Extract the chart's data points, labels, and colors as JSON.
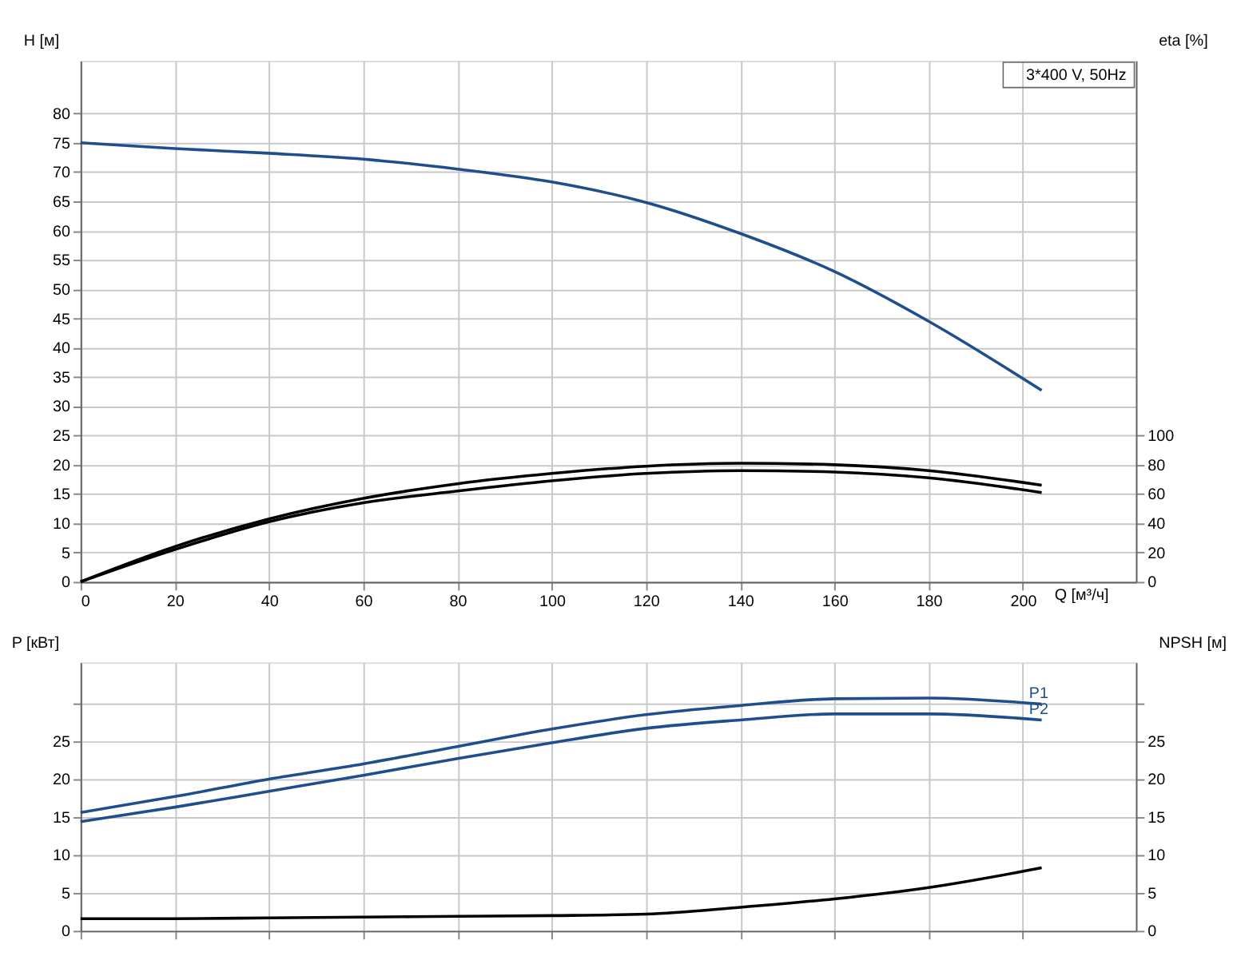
{
  "chart_data": [
    {
      "type": "line",
      "xlabel": "Q [м³/ч]",
      "ylabel": "H [м]",
      "y2label": "eta [%]",
      "annotations": [
        "3*400 V, 50Hz"
      ],
      "x": [
        0,
        20,
        40,
        60,
        80,
        100,
        120,
        140,
        160,
        180,
        204
      ],
      "series": [
        {
          "color": "#1f4e8c",
          "values": [
            75,
            74,
            73.2,
            72.2,
            70.5,
            68.3,
            64.8,
            59.5,
            53,
            44.5,
            32.7
          ]
        },
        {
          "color": "#000000",
          "axis": "y2",
          "values": [
            0,
            24,
            43,
            57,
            67,
            74,
            79,
            81,
            80,
            76,
            66
          ]
        },
        {
          "color": "#000000",
          "axis": "y2",
          "values": [
            0,
            22,
            41,
            54,
            62,
            69,
            74,
            76,
            75,
            71,
            61
          ]
        }
      ],
      "xlim": [
        0,
        224
      ],
      "xticks": [
        0,
        20,
        40,
        60,
        80,
        100,
        120,
        140,
        160,
        180,
        200
      ],
      "ylim": [
        0,
        89
      ],
      "yticks": [
        0,
        5,
        10,
        15,
        20,
        25,
        30,
        35,
        40,
        45,
        50,
        55,
        60,
        65,
        70,
        75,
        80
      ],
      "y2lim": [
        0,
        356
      ],
      "y2ticks": [
        0,
        20,
        40,
        60,
        80,
        100
      ],
      "grid": true,
      "legend": false
    },
    {
      "type": "line",
      "ylabel": "P [кВт]",
      "y2label": "NPSH [м]",
      "x": [
        0,
        20,
        40,
        60,
        80,
        100,
        120,
        140,
        160,
        180,
        204
      ],
      "series": [
        {
          "name": "P1",
          "color": "#1f4e8c",
          "values": [
            15.6,
            17.7,
            20,
            22,
            24.3,
            26.6,
            28.5,
            29.7,
            30.6,
            30.7,
            29.9
          ]
        },
        {
          "name": "P2",
          "color": "#1f4e8c",
          "values": [
            14.4,
            16.3,
            18.4,
            20.5,
            22.7,
            24.8,
            26.7,
            27.8,
            28.6,
            28.6,
            27.8
          ]
        },
        {
          "color": "#000000",
          "axis": "y2",
          "values": [
            1.6,
            1.6,
            1.7,
            1.8,
            1.9,
            2,
            2.2,
            3.1,
            4.2,
            5.7,
            8.3
          ]
        }
      ],
      "xlim": [
        0,
        224
      ],
      "xticks": [
        0,
        20,
        40,
        60,
        80,
        100,
        120,
        140,
        160,
        180,
        200
      ],
      "ylim": [
        0,
        35.4
      ],
      "yticks": [
        0,
        5,
        10,
        15,
        20,
        25,
        {
          "value": 30,
          "label": null
        }
      ],
      "y2lim": [
        0,
        35.4
      ],
      "y2ticks": [
        0,
        5,
        10,
        15,
        20,
        25,
        {
          "value": 30,
          "label": null
        }
      ],
      "grid": true,
      "legend": false,
      "tick_labels": "y"
    }
  ]
}
